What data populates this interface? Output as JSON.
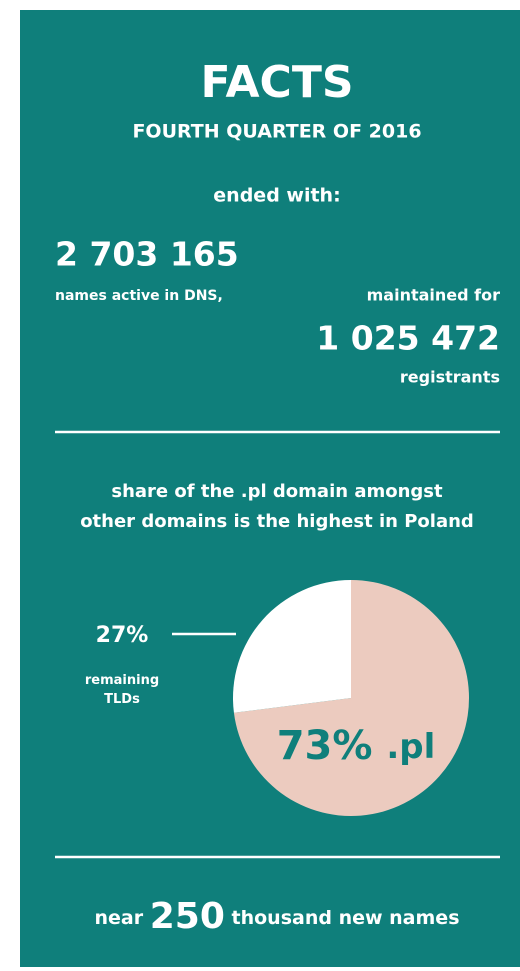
{
  "header": {
    "title": "FACTS",
    "subtitle": "FOURTH QUARTER OF 2016",
    "intro": "ended with:"
  },
  "facts": {
    "names_value": "2 703 165",
    "names_label": "names active in DNS,",
    "maintained": "maintained for",
    "registrants_value": "1 025 472",
    "registrants_label": "registrants"
  },
  "chart_data": {
    "type": "pie",
    "title": "share of the .pl domain amongst other domains is the highest in Poland",
    "categories": [
      ".pl",
      "remaining TLDs"
    ],
    "values": [
      73,
      27
    ],
    "value_labels": [
      "73%",
      "27%"
    ],
    "colors": [
      "#eccbbf",
      "#ffffff"
    ]
  },
  "footer": {
    "prefix": "near",
    "number": "250",
    "suffix": "thousand new names"
  }
}
